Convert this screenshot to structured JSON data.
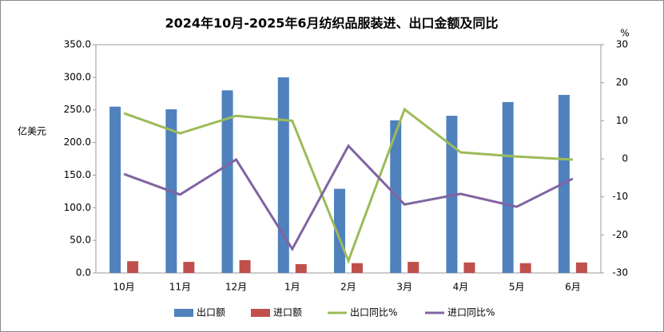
{
  "chart_data": {
    "type": "bar_line",
    "title": "2024年10月-2025年6月纺织品服装进、出口金额及同比",
    "y_label": "亿美元",
    "y2_label": "%",
    "categories": [
      "10月",
      "11月",
      "12月",
      "1月",
      "2月",
      "3月",
      "4月",
      "5月",
      "6月"
    ],
    "series": [
      {
        "name": "出口额",
        "type": "bar",
        "color": "#4f81bd",
        "values": [
          255,
          251,
          280,
          300,
          129,
          234,
          241,
          262,
          273
        ]
      },
      {
        "name": "进口额",
        "type": "bar",
        "color": "#c0504d",
        "values": [
          18,
          17,
          19.6,
          13.5,
          15,
          17,
          16,
          15,
          16
        ]
      },
      {
        "name": "出口同比%",
        "type": "line",
        "axis": "y2",
        "color": "#9bbb59",
        "values": [
          12,
          6.7,
          11.3,
          10,
          -26.8,
          13,
          1.7,
          0.6,
          -0.2
        ]
      },
      {
        "name": "进口同比%",
        "type": "line",
        "axis": "y2",
        "color": "#8064a2",
        "values": [
          -4,
          -9.4,
          -0.2,
          -23.7,
          3.4,
          -12,
          -9.2,
          -12.6,
          -5.2
        ]
      }
    ],
    "ylim": [
      0,
      350
    ],
    "yticks": [
      {
        "value": 0,
        "label": "0.0"
      },
      {
        "value": 50,
        "label": "50.0"
      },
      {
        "value": 100,
        "label": "100.0"
      },
      {
        "value": 150,
        "label": "150.0"
      },
      {
        "value": 200,
        "label": "200.0"
      },
      {
        "value": 250,
        "label": "250.0"
      },
      {
        "value": 300,
        "label": "300.0"
      },
      {
        "value": 350,
        "label": "350.0"
      }
    ],
    "y2lim": [
      -30,
      30
    ],
    "y2ticks": [
      -30,
      -20,
      -10,
      0,
      10,
      20,
      30
    ],
    "legend": "bottom"
  }
}
